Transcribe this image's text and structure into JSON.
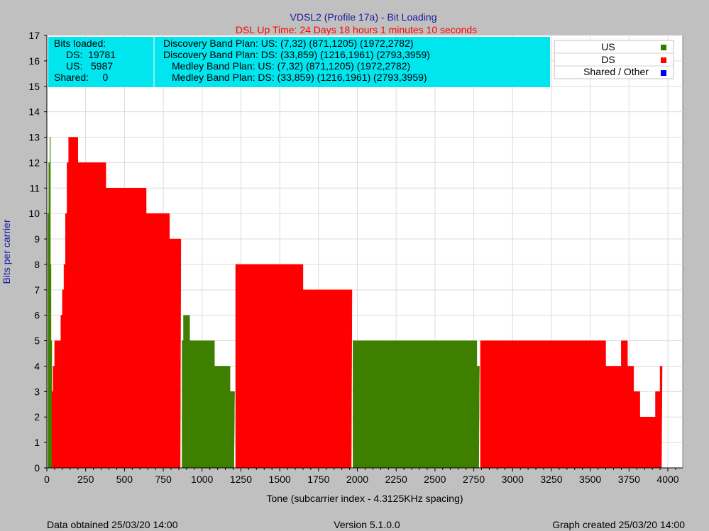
{
  "page": {
    "footer_left": "Data obtained 25/03/20 14:00",
    "footer_center": "Version 5.1.0.0",
    "footer_right": "Graph created 25/03/20 14:00"
  },
  "info_box": {
    "bits_loaded_label": "Bits loaded:",
    "ds_line": "DS:  19781",
    "us_line": "US:   5987",
    "shared_line": "Shared:     0",
    "band_lines": [
      "Discovery Band Plan: US: (7,32) (871,1205) (1972,2782)",
      "Discovery Band Plan: DS: (33,859) (1216,1961) (2793,3959)",
      "Medley Band Plan: US: (7,32) (871,1205) (1972,2782)",
      "Medley Band Plan: DS: (33,859) (1216,1961) (2793,3959)"
    ],
    "box_color": "#00e5ee"
  },
  "chart_data": {
    "type": "area",
    "title": "VDSL2 (Profile 17a) - Bit Loading",
    "subtitle": "DSL Up Time: 24 Days 18 hours 1 minutes 10 seconds",
    "xlabel": "Tone (subcarrier index - 4.3125KHz spacing)",
    "ylabel": "Bits per carrier",
    "xlim": [
      0,
      4096
    ],
    "ylim": [
      0,
      17
    ],
    "xticks": [
      "0",
      "250",
      "500",
      "750",
      "1000",
      "1250",
      "1500",
      "1750",
      "2000",
      "2250",
      "2500",
      "2750",
      "3000",
      "3250",
      "3500",
      "3750",
      "4000"
    ],
    "yticks": [
      "0",
      "1",
      "2",
      "3",
      "4",
      "5",
      "6",
      "7",
      "8",
      "9",
      "10",
      "11",
      "12",
      "13",
      "14",
      "15",
      "16",
      "17"
    ],
    "grid": true,
    "legend_position": "top-right",
    "legend": [
      {
        "name": "US",
        "color": "#2e7d00"
      },
      {
        "name": "DS",
        "color": "#ff0000"
      },
      {
        "name": "Shared / Other",
        "color": "#0000ff"
      }
    ],
    "series": [
      {
        "name": "US",
        "color": "#3f7f00",
        "segments": [
          [
            [
              7,
              10
            ],
            [
              12,
              12
            ],
            [
              17,
              12
            ],
            [
              20,
              13
            ],
            [
              23,
              8
            ],
            [
              27,
              5
            ],
            [
              32,
              3
            ]
          ],
          [
            [
              871,
              5
            ],
            [
              880,
              6
            ],
            [
              920,
              5
            ],
            [
              1000,
              5
            ],
            [
              1060,
              5
            ],
            [
              1080,
              4
            ],
            [
              1110,
              4
            ],
            [
              1120,
              4
            ],
            [
              1170,
              4
            ],
            [
              1180,
              3
            ],
            [
              1205,
              3
            ]
          ],
          [
            [
              1972,
              5
            ],
            [
              2000,
              5
            ],
            [
              2100,
              5
            ],
            [
              2200,
              5
            ],
            [
              2300,
              5
            ],
            [
              2400,
              5
            ],
            [
              2500,
              5
            ],
            [
              2600,
              5
            ],
            [
              2700,
              5
            ],
            [
              2750,
              5
            ],
            [
              2770,
              4
            ],
            [
              2782,
              4
            ]
          ]
        ]
      },
      {
        "name": "DS",
        "color": "#ff0000",
        "segments": [
          [
            [
              33,
              3
            ],
            [
              40,
              4
            ],
            [
              50,
              5
            ],
            [
              80,
              5
            ],
            [
              90,
              6
            ],
            [
              100,
              7
            ],
            [
              110,
              8
            ],
            [
              120,
              10
            ],
            [
              130,
              12
            ],
            [
              140,
              13
            ],
            [
              170,
              13
            ],
            [
              200,
              12
            ],
            [
              250,
              12
            ],
            [
              320,
              12
            ],
            [
              380,
              11
            ],
            [
              500,
              11
            ],
            [
              600,
              11
            ],
            [
              640,
              10
            ],
            [
              700,
              10
            ],
            [
              780,
              10
            ],
            [
              790,
              9
            ],
            [
              859,
              9
            ]
          ],
          [
            [
              1216,
              8
            ],
            [
              1300,
              8
            ],
            [
              1400,
              8
            ],
            [
              1500,
              8
            ],
            [
              1600,
              8
            ],
            [
              1650,
              7
            ],
            [
              1700,
              7
            ],
            [
              1800,
              7
            ],
            [
              1900,
              7
            ],
            [
              1961,
              7
            ]
          ],
          [
            [
              2793,
              5
            ],
            [
              2900,
              5
            ],
            [
              3000,
              5
            ],
            [
              3100,
              5
            ],
            [
              3200,
              5
            ],
            [
              3300,
              5
            ],
            [
              3400,
              5
            ],
            [
              3500,
              5
            ],
            [
              3550,
              5
            ],
            [
              3600,
              4
            ],
            [
              3650,
              4
            ],
            [
              3700,
              5
            ],
            [
              3720,
              5
            ],
            [
              3740,
              4
            ],
            [
              3750,
              4
            ],
            [
              3780,
              3
            ],
            [
              3800,
              3
            ],
            [
              3820,
              2
            ],
            [
              3900,
              2
            ],
            [
              3920,
              3
            ],
            [
              3950,
              4
            ],
            [
              3959,
              4
            ]
          ]
        ]
      },
      {
        "name": "Shared / Other",
        "color": "#0000ff",
        "segments": []
      }
    ]
  }
}
